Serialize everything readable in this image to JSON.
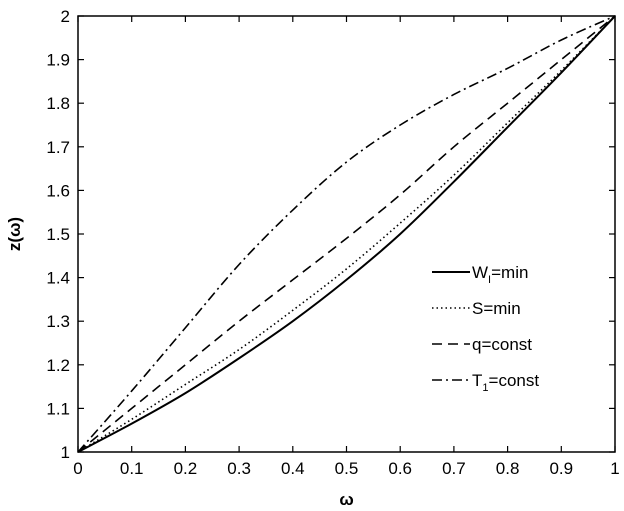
{
  "chart_data": {
    "type": "line",
    "title": "",
    "xlabel": "ω",
    "ylabel": "z(ω)",
    "xlim": [
      0,
      1
    ],
    "ylim": [
      1,
      2
    ],
    "xticks": [
      0,
      0.1,
      0.2,
      0.3,
      0.4,
      0.5,
      0.6,
      0.7,
      0.8,
      0.9,
      1
    ],
    "yticks": [
      1,
      1.1,
      1.2,
      1.3,
      1.4,
      1.5,
      1.6,
      1.7,
      1.8,
      1.9,
      2
    ],
    "xtick_labels": [
      "0",
      "0.1",
      "0.2",
      "0.3",
      "0.4",
      "0.5",
      "0.6",
      "0.7",
      "0.8",
      "0.9",
      "1"
    ],
    "ytick_labels": [
      "1",
      "1.1",
      "1.2",
      "1.3",
      "1.4",
      "1.5",
      "1.6",
      "1.7",
      "1.8",
      "1.9",
      "2"
    ],
    "grid": false,
    "legend_position": "right",
    "x": [
      0,
      0.1,
      0.2,
      0.3,
      0.4,
      0.5,
      0.6,
      0.7,
      0.8,
      0.9,
      1.0
    ],
    "series": [
      {
        "name": "W=min",
        "name_main": "W",
        "name_sub": "I",
        "name_rest": "=min",
        "dash": "solid",
        "values": [
          1.0,
          1.065,
          1.135,
          1.215,
          1.3,
          1.395,
          1.5,
          1.62,
          1.745,
          1.87,
          2.0
        ]
      },
      {
        "name": "S=min",
        "name_main": "S=min",
        "name_sub": "",
        "name_rest": "",
        "dash": "dotted",
        "values": [
          1.0,
          1.075,
          1.155,
          1.235,
          1.325,
          1.42,
          1.525,
          1.635,
          1.755,
          1.875,
          2.0
        ]
      },
      {
        "name": "q=const",
        "name_main": "q=const",
        "name_sub": "",
        "name_rest": "",
        "dash": "dashed",
        "values": [
          1.0,
          1.1,
          1.2,
          1.3,
          1.395,
          1.49,
          1.59,
          1.7,
          1.8,
          1.9,
          2.0
        ]
      },
      {
        "name": "T1=const",
        "name_main": "T",
        "name_sub": "1",
        "name_rest": "=const",
        "dash": "dashdot",
        "values": [
          1.0,
          1.14,
          1.285,
          1.43,
          1.555,
          1.665,
          1.75,
          1.82,
          1.88,
          1.945,
          2.0
        ]
      }
    ],
    "colors": {
      "line": "#000000",
      "background": "#ffffff"
    }
  }
}
